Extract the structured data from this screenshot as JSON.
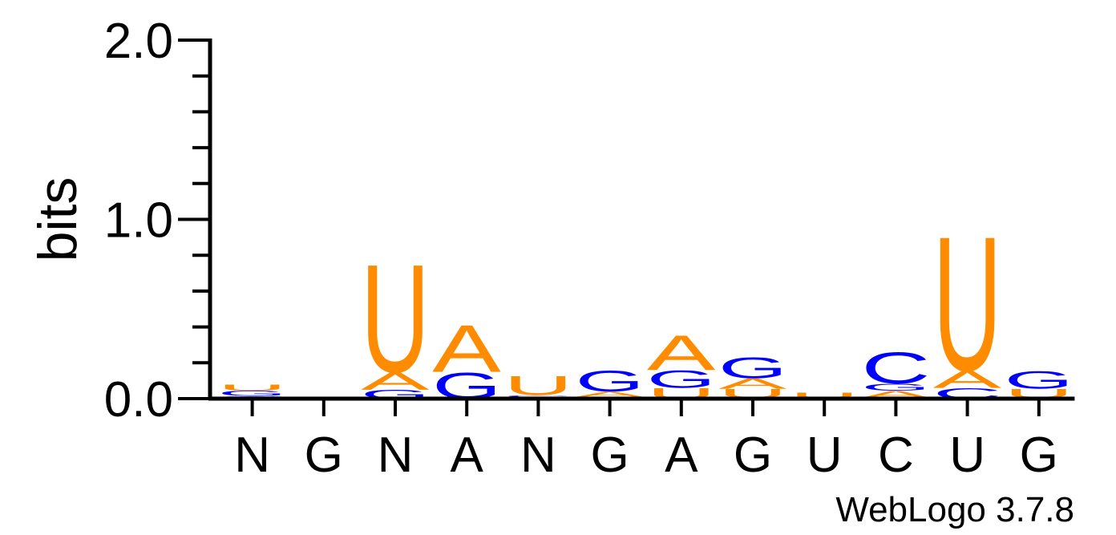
{
  "chart_data": {
    "type": "sequence-logo",
    "ylabel": "bits",
    "ylim": [
      0,
      2
    ],
    "yticks": [
      {
        "value": 0,
        "label": "0.0"
      },
      {
        "value": 1,
        "label": "1.0"
      },
      {
        "value": 2,
        "label": "2.0"
      }
    ],
    "yminor_step": 0.2,
    "x_tick_labels": [
      "N",
      "G",
      "N",
      "A",
      "N",
      "G",
      "A",
      "G",
      "U",
      "C",
      "U",
      "G"
    ],
    "colors": {
      "A": "#ff8c00",
      "U": "#ff8c00",
      "G": "#0000ff",
      "C": "#0000ff"
    },
    "positions": [
      {
        "position": 1,
        "stack": [
          {
            "letter": "A",
            "bits": 0.005
          },
          {
            "letter": "C",
            "bits": 0.01
          },
          {
            "letter": "G",
            "bits": 0.03
          },
          {
            "letter": "U",
            "bits": 0.035
          }
        ]
      },
      {
        "position": 2,
        "stack": []
      },
      {
        "position": 3,
        "stack": [
          {
            "letter": "G",
            "bits": 0.05
          },
          {
            "letter": "A",
            "bits": 0.1
          },
          {
            "letter": "U",
            "bits": 0.62
          }
        ]
      },
      {
        "position": 4,
        "stack": [
          {
            "letter": "G",
            "bits": 0.15
          },
          {
            "letter": "A",
            "bits": 0.27
          }
        ]
      },
      {
        "position": 5,
        "stack": [
          {
            "letter": "A",
            "bits": 0.005
          },
          {
            "letter": "G",
            "bits": 0.005
          },
          {
            "letter": "C",
            "bits": 0.01
          },
          {
            "letter": "U",
            "bits": 0.11
          }
        ]
      },
      {
        "position": 6,
        "stack": [
          {
            "letter": "U",
            "bits": 0.005
          },
          {
            "letter": "C",
            "bits": 0.005
          },
          {
            "letter": "A",
            "bits": 0.03
          },
          {
            "letter": "G",
            "bits": 0.12
          }
        ]
      },
      {
        "position": 7,
        "stack": [
          {
            "letter": "U",
            "bits": 0.06
          },
          {
            "letter": "G",
            "bits": 0.1
          },
          {
            "letter": "A",
            "bits": 0.2
          }
        ]
      },
      {
        "position": 8,
        "stack": [
          {
            "letter": "C",
            "bits": 0.005
          },
          {
            "letter": "U",
            "bits": 0.05
          },
          {
            "letter": "A",
            "bits": 0.06
          },
          {
            "letter": "G",
            "bits": 0.12
          }
        ]
      },
      {
        "position": 9,
        "stack": [
          {
            "letter": "C",
            "bits": 0.005
          },
          {
            "letter": "U",
            "bits": 0.03
          }
        ]
      },
      {
        "position": 10,
        "stack": [
          {
            "letter": "U",
            "bits": 0.005
          },
          {
            "letter": "A",
            "bits": 0.04
          },
          {
            "letter": "G",
            "bits": 0.04
          },
          {
            "letter": "C",
            "bits": 0.18
          }
        ]
      },
      {
        "position": 11,
        "stack": [
          {
            "letter": "C",
            "bits": 0.06
          },
          {
            "letter": "A",
            "bits": 0.1
          },
          {
            "letter": "U",
            "bits": 0.77
          }
        ]
      },
      {
        "position": 12,
        "stack": [
          {
            "letter": "A",
            "bits": 0.005
          },
          {
            "letter": "U",
            "bits": 0.05
          },
          {
            "letter": "G",
            "bits": 0.1
          }
        ]
      }
    ]
  },
  "footer": {
    "credit": "WebLogo 3.7.8"
  }
}
